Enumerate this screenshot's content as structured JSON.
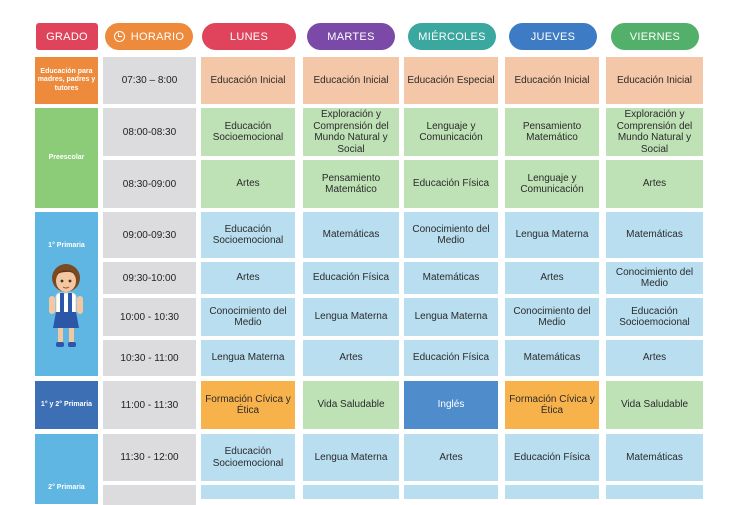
{
  "headers": {
    "grado": "GRADO",
    "horario": "HORARIO",
    "days": [
      "LUNES",
      "MARTES",
      "MIÉRCOLES",
      "JUEVES",
      "VIERNES"
    ]
  },
  "colors": {
    "grado": "#e0445c",
    "horario": "#ee8a3c",
    "lunes": "#e0445c",
    "martes": "#7b4aa8",
    "miercoles": "#3aa89f",
    "jueves": "#3d7cc4",
    "viernes": "#52b06a",
    "orange_cell": "#f4c7a8",
    "green_cell": "#bfe1b6",
    "blue_cell": "#b8def0",
    "amber_cell": "#f7b24c",
    "mid_blue_cell": "#4f8ccc"
  },
  "grades": [
    {
      "id": "madres",
      "label": "Educación para madres, padres y tutores"
    },
    {
      "id": "preescolar",
      "label": "Preescolar"
    },
    {
      "id": "primaria1",
      "label": "1° Primaria"
    },
    {
      "id": "primaria12",
      "label": "1° y 2° Primaria"
    },
    {
      "id": "primaria2",
      "label": "2° Primaria"
    }
  ],
  "rows": [
    {
      "time": "07:30 – 8:00",
      "cells": [
        "Educación Inicial",
        "Educación Inicial",
        "Educación Especial",
        "Educación Inicial",
        "Educación Inicial"
      ]
    },
    {
      "time": "08:00-08:30",
      "cells": [
        "Educación Socioemocional",
        "Exploración y Comprensión del Mundo Natural y Social",
        "Lenguaje y Comunicación",
        "Pensamiento Matemático",
        "Exploración y Comprensión del Mundo Natural y Social"
      ]
    },
    {
      "time": "08:30-09:00",
      "cells": [
        "Artes",
        "Pensamiento Matemático",
        "Educación Física",
        "Lenguaje y Comunicación",
        "Artes"
      ]
    },
    {
      "time": "09:00-09:30",
      "cells": [
        "Educación Socioemocional",
        "Matemáticas",
        "Conocimiento del Medio",
        "Lengua Materna",
        "Matemáticas"
      ]
    },
    {
      "time": "09:30-10:00",
      "cells": [
        "Artes",
        "Educación Física",
        "Matemáticas",
        "Artes",
        "Conocimiento del Medio"
      ]
    },
    {
      "time": "10:00 - 10:30",
      "cells": [
        "Conocimiento del Medio",
        "Lengua Materna",
        "Lengua Materna",
        "Conocimiento del Medio",
        "Educación Socioemocional"
      ]
    },
    {
      "time": "10:30 - 11:00",
      "cells": [
        "Lengua Materna",
        "Artes",
        "Educación Física",
        "Matemáticas",
        "Artes"
      ]
    },
    {
      "time": "11:00 - 11:30",
      "cells": [
        "Formación Cívica y Ética",
        "Vida Saludable",
        "Inglés",
        "Formación Cívica y Ética",
        "Vida Saludable"
      ]
    },
    {
      "time": "11:30 - 12:00",
      "cells": [
        "Educación Socioemocional",
        "Lengua Materna",
        "Artes",
        "Educación Física",
        "Matemáticas"
      ]
    }
  ]
}
